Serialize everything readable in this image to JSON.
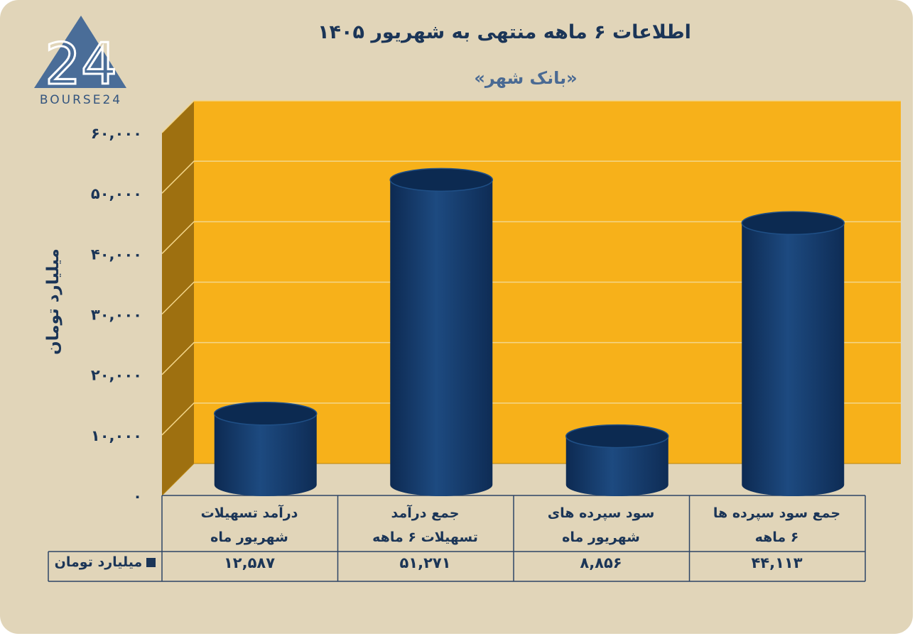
{
  "title": "اطلاعات ۶ ماهه منتهی به شهریور ۱۴۰۵",
  "subtitle": "«بانک شهر»",
  "logo": {
    "text": "BOURSE24",
    "mark": "24"
  },
  "colors": {
    "background": "#e1d5b9",
    "plot_area": "#f7b11a",
    "side_wall": "#9e7010",
    "bars": "#163a6b",
    "text": "#1b3557"
  },
  "chart_data": {
    "type": "bar",
    "style": "3d-cylinder",
    "ylabel": "میلیارد تومان",
    "ylim": [
      0,
      60000
    ],
    "yticks": [
      "۰",
      "۱۰,۰۰۰",
      "۲۰,۰۰۰",
      "۳۰,۰۰۰",
      "۴۰,۰۰۰",
      "۵۰,۰۰۰",
      "۶۰,۰۰۰"
    ],
    "ytick_values": [
      0,
      10000,
      20000,
      30000,
      40000,
      50000,
      60000
    ],
    "categories": [
      [
        "درآمد تسهیلات",
        "شهریور ماه"
      ],
      [
        "جمع درآمد",
        "تسهیلات ۶ ماهه"
      ],
      [
        "سود سپرده های",
        "شهریور ماه"
      ],
      [
        "جمع سود سپرده ها",
        "۶ ماهه"
      ]
    ],
    "series": [
      {
        "name": "میلیارد تومان",
        "values": [
          12587,
          51271,
          8856,
          44113
        ],
        "labels": [
          "۱۲,۵۸۷",
          "۵۱,۲۷۱",
          "۸,۸۵۶",
          "۴۴,۱۱۳"
        ]
      }
    ],
    "grid": true,
    "data_table": true
  }
}
